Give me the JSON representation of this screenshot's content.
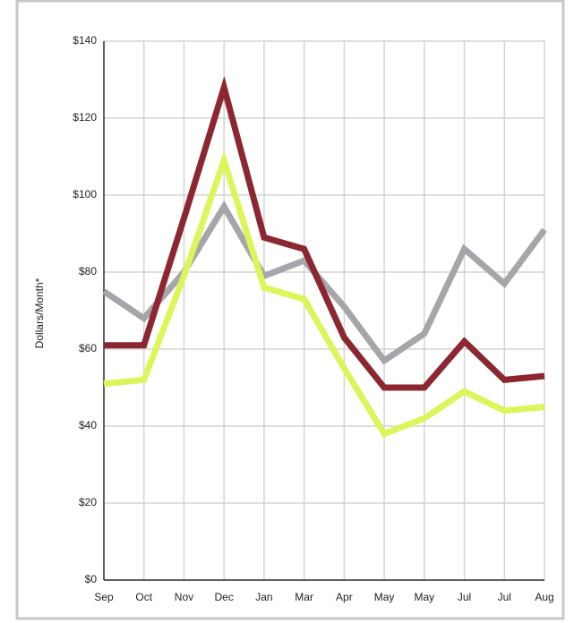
{
  "chart_data": {
    "type": "line",
    "y_label": "Dollars/Month*",
    "categories": [
      "Sep",
      "Oct",
      "Nov",
      "Dec",
      "Jan",
      "Mar",
      "Apr",
      "May",
      "May",
      "Jul",
      "Jul",
      "Aug"
    ],
    "series": [
      {
        "color": "#a5a5aa",
        "values": [
          75,
          68,
          80,
          97,
          79,
          83,
          71,
          57,
          64,
          86,
          77,
          91
        ]
      },
      {
        "color": "#8c2630",
        "values": [
          61,
          61,
          94,
          128,
          89,
          86,
          63,
          50,
          50,
          62,
          52,
          53
        ]
      },
      {
        "color": "#ddf55a",
        "values": [
          51,
          52,
          79,
          109,
          76,
          73,
          55,
          38,
          42,
          49,
          44,
          45
        ]
      }
    ],
    "ylim": [
      0,
      140
    ],
    "yticks": [
      {
        "value": 0,
        "label": "$0"
      },
      {
        "value": 20,
        "label": "$20"
      },
      {
        "value": 40,
        "label": "$40"
      },
      {
        "value": 60,
        "label": "$60"
      },
      {
        "value": 80,
        "label": "$80"
      },
      {
        "value": 100,
        "label": "$100"
      },
      {
        "value": 120,
        "label": "$120"
      },
      {
        "value": 140,
        "label": "$140"
      }
    ],
    "grid": true
  }
}
